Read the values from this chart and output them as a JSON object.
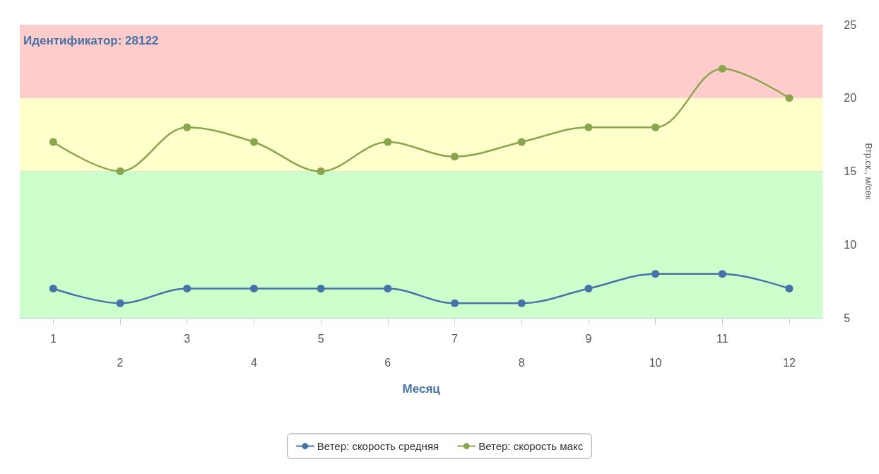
{
  "chart_data": {
    "type": "line",
    "title": "Идентификатор: 28122",
    "xlabel": "Месяц",
    "ylabel": "Втр.ск., м/сек",
    "categories": [
      "1",
      "2",
      "3",
      "4",
      "5",
      "6",
      "7",
      "8",
      "9",
      "10",
      "11",
      "12"
    ],
    "series": [
      {
        "name": "Ветер: скорость средняя",
        "color": "#4572a7",
        "values": [
          7,
          6,
          7,
          7,
          7,
          7,
          6,
          6,
          7,
          8,
          8,
          7
        ]
      },
      {
        "name": "Ветер: скорость макс",
        "color": "#89a54e",
        "values": [
          17,
          15,
          18,
          17,
          15,
          17,
          16,
          17,
          18,
          18,
          22,
          20
        ]
      }
    ],
    "ylim": [
      5,
      25
    ],
    "yticks": [
      5,
      10,
      15,
      20,
      25
    ],
    "bands": [
      {
        "axis": "y",
        "from": 5,
        "to": 15,
        "color": "#ccffcc"
      },
      {
        "axis": "y",
        "from": 15,
        "to": 20,
        "color": "#ffffcc"
      },
      {
        "axis": "y",
        "from": 20,
        "to": 25,
        "color": "#ffcccc"
      }
    ],
    "grid": "y",
    "legend": "bottom",
    "marker": "circle",
    "line_style": "solid"
  }
}
